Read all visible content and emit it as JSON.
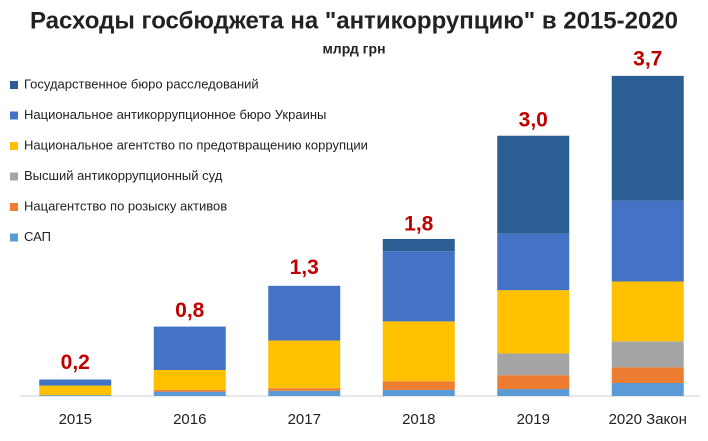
{
  "chart_data": {
    "type": "stacked_bar",
    "title": "Расходы госбюджета на \"антикоррупцию\" в 2015-2020",
    "subtitle": "млрд грн",
    "categories": [
      "2015",
      "2016",
      "2017",
      "2018",
      "2019",
      "2020 Закон"
    ],
    "series": [
      {
        "name": "Государственное бюро расследований",
        "color": "#2b5f94",
        "values": [
          0,
          0,
          0,
          0.14,
          1.13,
          1.44
        ]
      },
      {
        "name": "Национальное антикоррупционное бюро Украины",
        "color": "#4472c4",
        "values": [
          0.07,
          0.5,
          0.63,
          0.81,
          0.65,
          0.93
        ]
      },
      {
        "name": "Национальное агентство по предотвращению коррупции",
        "color": "#ffc000",
        "values": [
          0.11,
          0.23,
          0.55,
          0.69,
          0.73,
          0.69
        ]
      },
      {
        "name": "Высший антикоррупционный суд",
        "color": "#a5a5a5",
        "values": [
          0,
          0,
          0,
          0,
          0.25,
          0.3
        ]
      },
      {
        "name": "Нацагентство по розыску активов",
        "color": "#ed7d31",
        "values": [
          0,
          0.02,
          0.03,
          0.1,
          0.16,
          0.18
        ]
      },
      {
        "name": "САП",
        "color": "#5b9bd5",
        "values": [
          0.01,
          0.05,
          0.06,
          0.07,
          0.08,
          0.15
        ]
      }
    ],
    "totals": {
      "values": [
        0.2,
        0.8,
        1.3,
        1.8,
        3.0,
        3.7
      ],
      "value_labels": [
        "0,2",
        "0,8",
        "1,3",
        "1,8",
        "3,0",
        "3,7"
      ],
      "color": "#c00000"
    }
  }
}
